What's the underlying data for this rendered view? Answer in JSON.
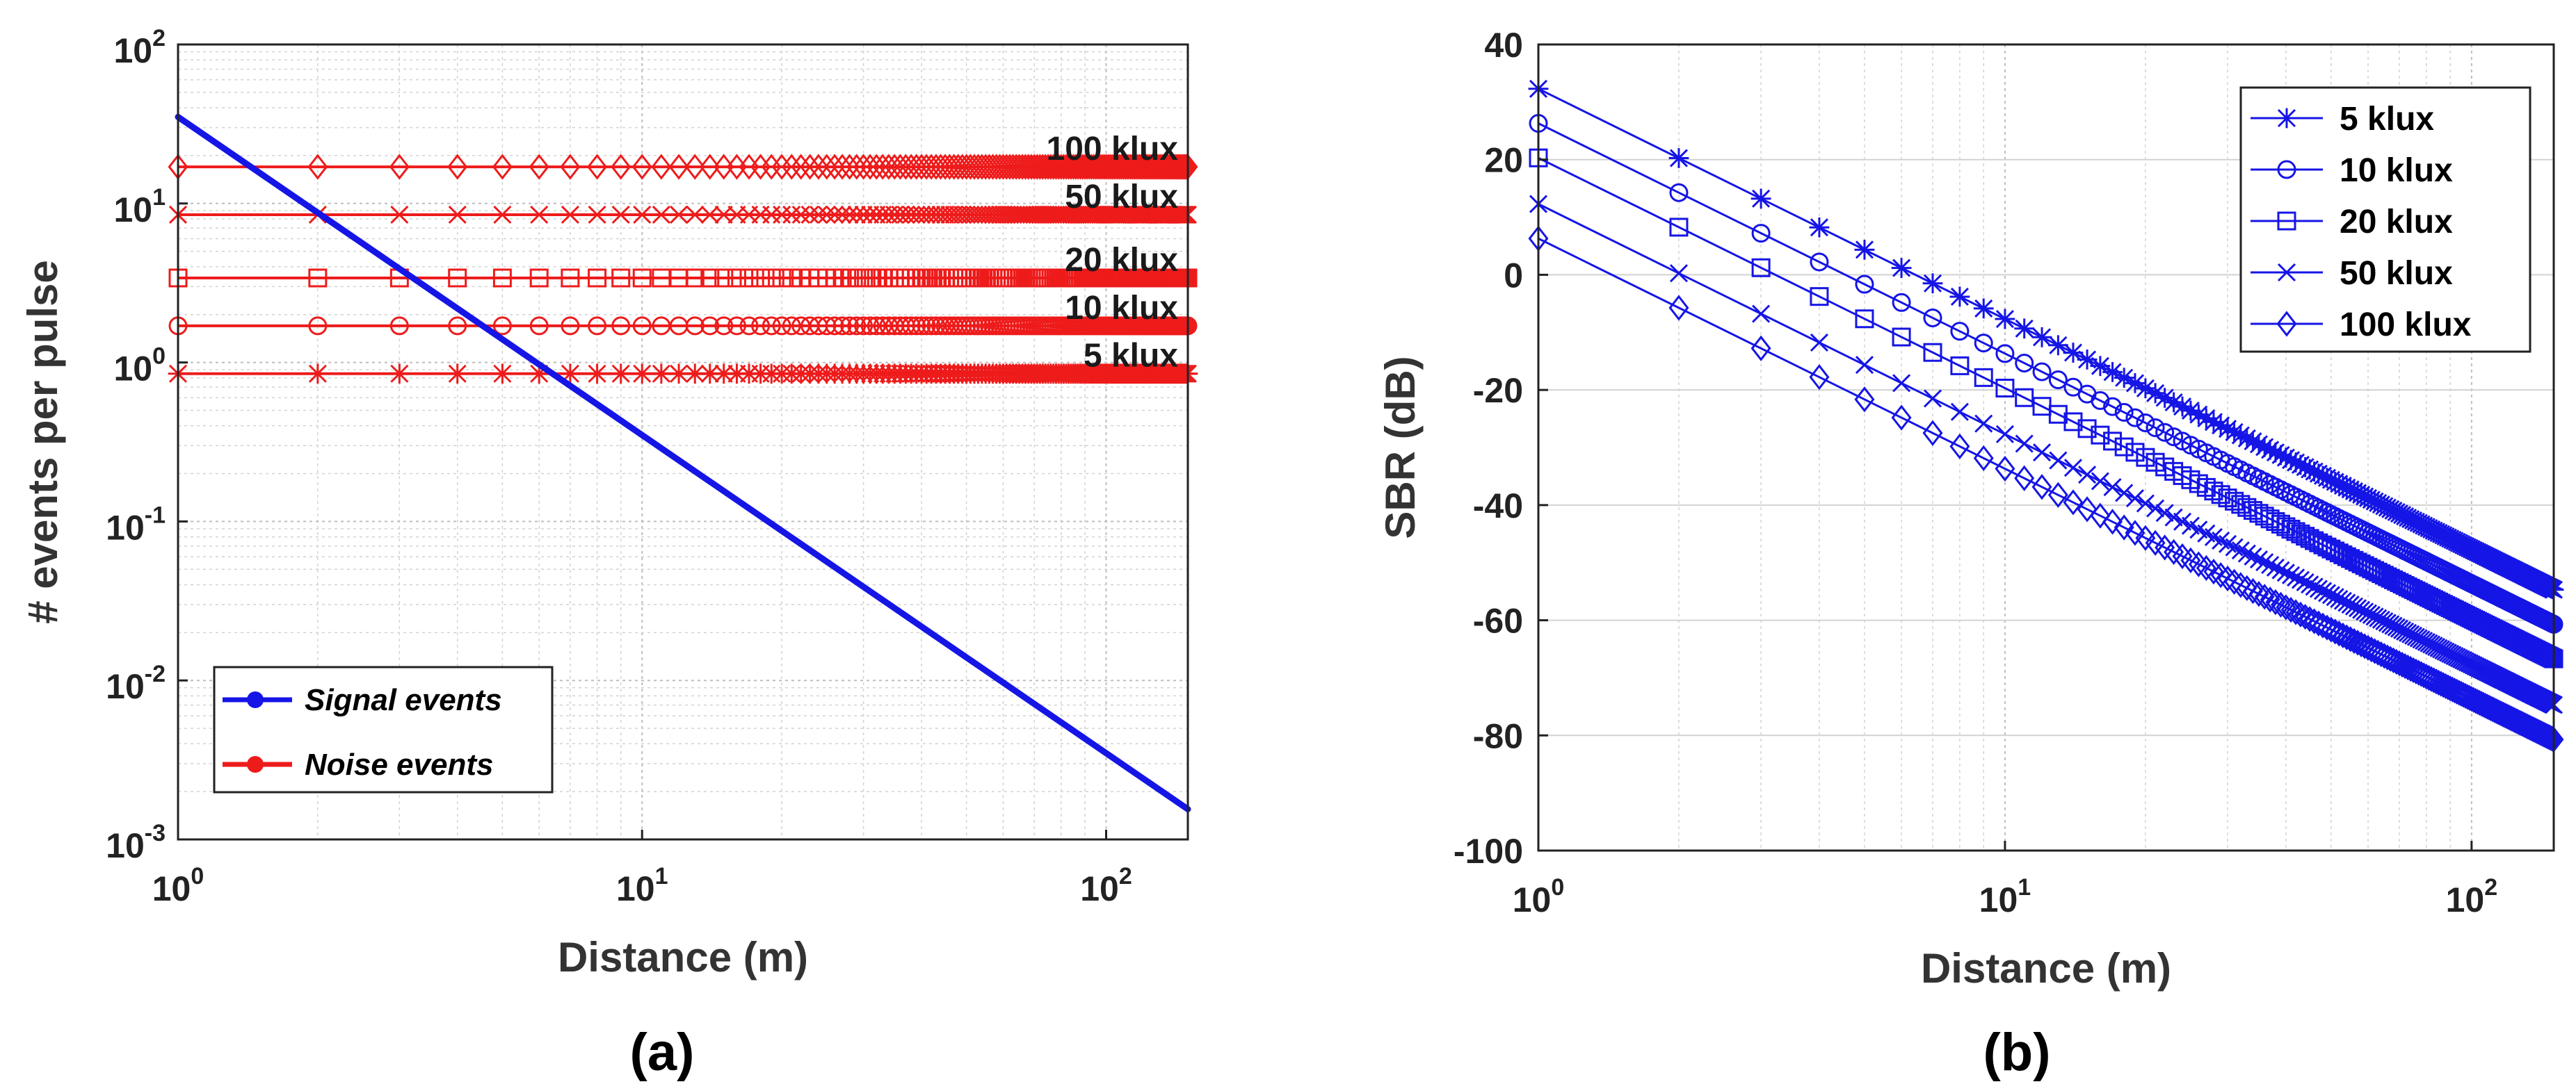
{
  "chart_data": [
    {
      "id": "a",
      "type": "line",
      "scale": "log-log",
      "caption": "(a)",
      "xlabel": "Distance (m)",
      "ylabel": "# events per pulse",
      "xlim": [
        1,
        150
      ],
      "ylim": [
        0.001,
        100
      ],
      "grid": true,
      "x_ticks": [
        {
          "base": "10",
          "exp": "0",
          "value": 1
        },
        {
          "base": "10",
          "exp": "1",
          "value": 10
        },
        {
          "base": "10",
          "exp": "2",
          "value": 100
        }
      ],
      "y_ticks": [
        {
          "base": "10",
          "exp": "-3",
          "value": 0.001
        },
        {
          "base": "10",
          "exp": "-2",
          "value": 0.01
        },
        {
          "base": "10",
          "exp": "-1",
          "value": 0.1
        },
        {
          "base": "10",
          "exp": "0",
          "value": 1
        },
        {
          "base": "10",
          "exp": "1",
          "value": 10
        },
        {
          "base": "10",
          "exp": "2",
          "value": 100
        }
      ],
      "signal": {
        "name": "Signal events",
        "color": "#1515e6",
        "x": [
          1,
          150
        ],
        "y": [
          35,
          0.00155
        ]
      },
      "noise": [
        {
          "label": "100 klux",
          "value": 17,
          "marker": "diamond"
        },
        {
          "label": "50 klux",
          "value": 8.5,
          "marker": "x"
        },
        {
          "label": "20 klux",
          "value": 3.4,
          "marker": "square"
        },
        {
          "label": "10 klux",
          "value": 1.7,
          "marker": "circle"
        },
        {
          "label": "5 klux",
          "value": 0.85,
          "marker": "star"
        }
      ],
      "noise_color": "#ee1b1b",
      "legend": [
        {
          "name": "Signal events",
          "color": "#1515e6"
        },
        {
          "name": "Noise events",
          "color": "#ee1b1b"
        }
      ],
      "legend_position": "bottom-left"
    },
    {
      "id": "b",
      "type": "line",
      "scale": "semilog-x",
      "caption": "(b)",
      "xlabel": "Distance (m)",
      "ylabel": "SBR (dB)",
      "xlim": [
        1,
        150
      ],
      "ylim": [
        -100,
        40
      ],
      "grid": true,
      "x_ticks": [
        {
          "base": "10",
          "exp": "0",
          "value": 1
        },
        {
          "base": "10",
          "exp": "1",
          "value": 10
        },
        {
          "base": "10",
          "exp": "2",
          "value": 100
        }
      ],
      "y_ticks": [
        "-100",
        "-80",
        "-60",
        "-40",
        "-20",
        "0",
        "20",
        "40"
      ],
      "color": "#1515e6",
      "series": [
        {
          "name": "5 klux",
          "marker": "star",
          "x": [
            1,
            150
          ],
          "y": [
            32.3,
            -54.7
          ]
        },
        {
          "name": "10 klux",
          "marker": "circle",
          "x": [
            1,
            150
          ],
          "y": [
            26.3,
            -60.7
          ]
        },
        {
          "name": "20 klux",
          "marker": "square",
          "x": [
            1,
            150
          ],
          "y": [
            20.3,
            -66.7
          ]
        },
        {
          "name": "50 klux",
          "marker": "x",
          "x": [
            1,
            150
          ],
          "y": [
            12.3,
            -74.7
          ]
        },
        {
          "name": "100 klux",
          "marker": "diamond",
          "x": [
            1,
            150
          ],
          "y": [
            6.3,
            -80.7
          ]
        }
      ],
      "legend_position": "top-right"
    }
  ]
}
